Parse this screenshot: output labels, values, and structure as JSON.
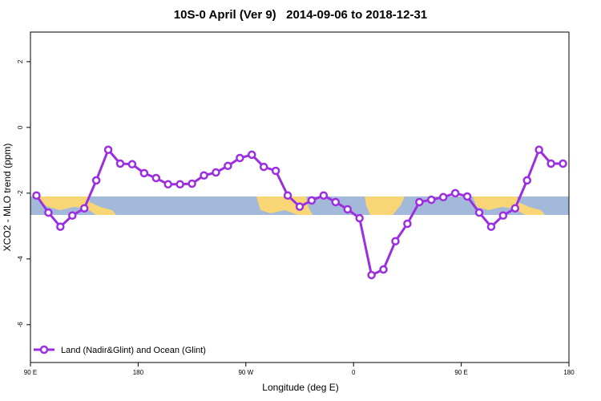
{
  "chart_data": {
    "type": "line",
    "title": "10S-0 April (Ver 9)   2014-09-06 to 2018-12-31",
    "xlabel": "Longitude (deg E)",
    "ylabel": "XCO2 - MLO trend (ppm)",
    "x": [
      95,
      105,
      115,
      125,
      135,
      145,
      155,
      165,
      175,
      185,
      195,
      205,
      215,
      225,
      235,
      245,
      255,
      265,
      275,
      285,
      295,
      305,
      315,
      325,
      335,
      345,
      355,
      365,
      375,
      385,
      395,
      405,
      415,
      425,
      435,
      445,
      455,
      465,
      475,
      485,
      495,
      505,
      515,
      525,
      535
    ],
    "series": [
      {
        "name": "Land (Nadir&Glint) and Ocean (Glint)",
        "color": "#9b2fe0",
        "values": [
          -2.07,
          -2.59,
          -3.02,
          -2.68,
          -2.46,
          -1.61,
          -0.68,
          -1.1,
          -1.12,
          -1.39,
          -1.54,
          -1.73,
          -1.73,
          -1.71,
          -1.46,
          -1.37,
          -1.17,
          -0.93,
          -0.83,
          -1.2,
          -1.32,
          -2.07,
          -2.41,
          -2.22,
          -2.07,
          -2.27,
          -2.49,
          -2.76,
          -4.49,
          -4.32,
          -3.46,
          -2.93,
          -2.27,
          -2.2,
          -2.12,
          -2.0,
          -2.1,
          -2.59,
          -3.02,
          -2.68,
          -2.46,
          -1.61,
          -0.68,
          -1.1,
          -1.1
        ]
      }
    ],
    "xlim": [
      90,
      540
    ],
    "xticks": [
      {
        "value": 90,
        "label": "90 E"
      },
      {
        "value": 180,
        "label": "180"
      },
      {
        "value": 270,
        "label": "90 W"
      },
      {
        "value": 360,
        "label": "0"
      },
      {
        "value": 450,
        "label": "90 E"
      },
      {
        "value": 540,
        "label": "180"
      }
    ],
    "ylim": [
      -7.15,
      2.9
    ],
    "yticks": [
      2,
      0,
      -2,
      -4,
      -6
    ],
    "legend": "bottom-left"
  }
}
